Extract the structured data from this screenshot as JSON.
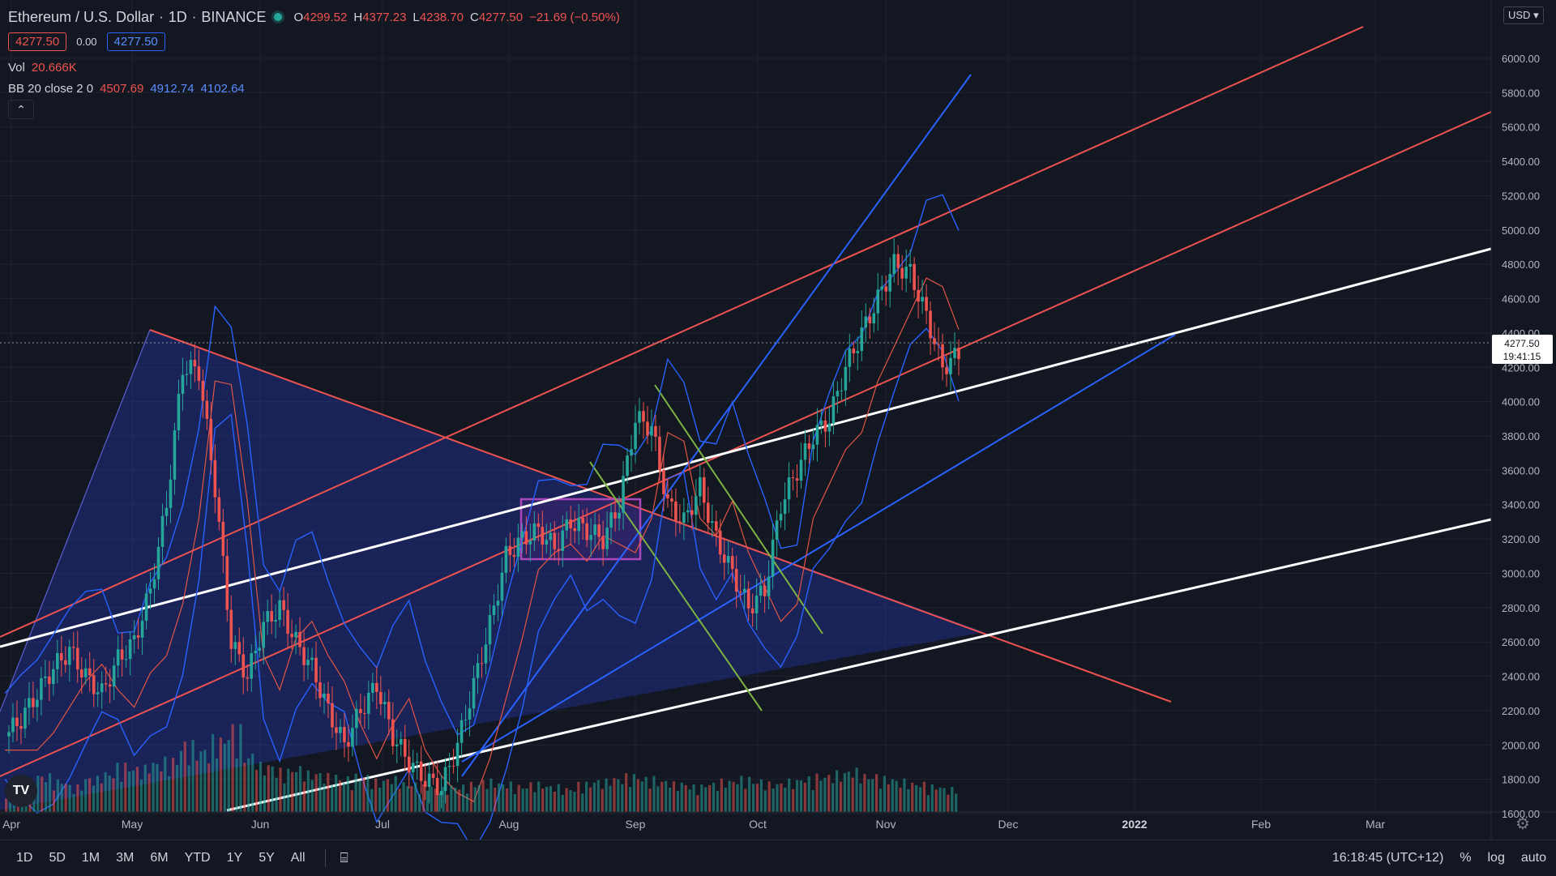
{
  "header": {
    "symbol": "Ethereum / U.S. Dollar",
    "interval": "1D",
    "exchange": "BINANCE",
    "open_label": "O",
    "open": "4299.52",
    "high_label": "H",
    "high": "4377.23",
    "low_label": "L",
    "low": "4238.70",
    "close_label": "C",
    "close": "4277.50",
    "change": "−21.69 (−0.50%)",
    "bid": "4277.50",
    "spread": "0.00",
    "ask": "4277.50"
  },
  "indicators": {
    "vol_label": "Vol",
    "vol_value": "20.666K",
    "bb_label": "BB 20 close 2 0",
    "bb_basis": "4507.69",
    "bb_upper": "4912.74",
    "bb_lower": "4102.64",
    "collapse_icon": "chevron-up-icon"
  },
  "currency": "USD",
  "logo": "TV",
  "chart_data": {
    "type": "line",
    "ylim": [
      1500,
      6250
    ],
    "y_ticks": [
      "6000.00",
      "5800.00",
      "5600.00",
      "5400.00",
      "5200.00",
      "5000.00",
      "4800.00",
      "4600.00",
      "4400.00",
      "4200.00",
      "4000.00",
      "3800.00",
      "3600.00",
      "3400.00",
      "3200.00",
      "3000.00",
      "2800.00",
      "2600.00",
      "2400.00",
      "2200.00",
      "2000.00",
      "1800.00",
      "1600.00"
    ],
    "x_ticks": [
      "Apr",
      "May",
      "Jun",
      "Jul",
      "Aug",
      "Sep",
      "Oct",
      "Nov",
      "Dec",
      "2022",
      "Feb",
      "Mar"
    ],
    "last_price": "4277.50",
    "countdown": "19:41:15",
    "series": [
      {
        "values": [
          2050,
          2150,
          2300,
          2450,
          2550,
          2400,
          2300,
          2500,
          2600,
          2900,
          3400,
          4200,
          4180,
          3500,
          2600,
          2400,
          2700,
          2800,
          2600,
          2450,
          2200,
          2000,
          2200,
          2350,
          2050,
          1900,
          1800,
          1750,
          2000,
          2350,
          2700,
          3100,
          3200,
          3250,
          3150,
          3300,
          3250,
          3200,
          3400,
          3900,
          3850,
          3400,
          3300,
          3500,
          3200,
          3000,
          2800,
          2900,
          3400,
          3600,
          3800,
          3900,
          4200,
          4400,
          4600,
          4800,
          4750,
          4500,
          4200,
          4277.5
        ]
      }
    ],
    "volume": [
      40,
      55,
      70,
      60,
      50,
      65,
      75,
      90,
      85,
      95,
      100,
      130,
      120,
      140,
      160,
      110,
      90,
      80,
      85,
      75,
      70,
      65,
      70,
      60,
      65,
      55,
      50,
      45,
      50,
      55,
      60,
      55,
      50,
      55,
      50,
      45,
      55,
      60,
      65,
      70,
      65,
      60,
      55,
      50,
      55,
      60,
      65,
      60,
      55,
      60,
      65,
      70,
      75,
      80,
      70,
      65,
      60,
      55,
      50,
      45
    ]
  },
  "bottom": {
    "ranges": [
      "1D",
      "5D",
      "1M",
      "3M",
      "6M",
      "YTD",
      "1Y",
      "5Y",
      "All"
    ],
    "compare_icon": "calendar-range-icon",
    "time": "16:18:45 (UTC+12)",
    "percent": "%",
    "log": "log",
    "auto": "auto",
    "settings_icon": "gear-icon"
  }
}
